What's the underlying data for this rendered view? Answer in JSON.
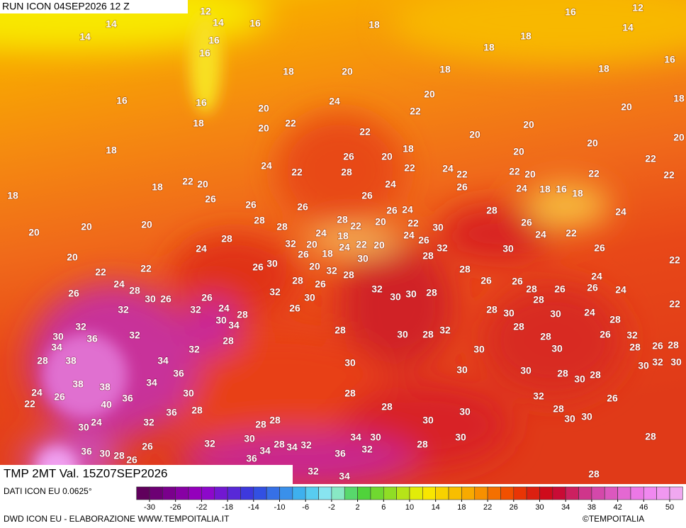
{
  "header": {
    "run": "RUN ICON 04SEP2026 12 Z"
  },
  "footer": {
    "title": "TMP 2MT Val. 15Z07SEP2026",
    "source": "DATI ICON EU 0.0625°",
    "credit": "DWD ICON EU - ELABORAZIONE WWW.TEMPOITALIA.IT",
    "brand": "©TEMPOITALIA"
  },
  "scale": {
    "ticks": [
      -30,
      -26,
      -22,
      -18,
      -14,
      -10,
      -6,
      -2,
      2,
      6,
      10,
      14,
      18,
      22,
      26,
      30,
      34,
      38,
      42,
      46,
      50
    ]
  },
  "labels": [
    12,
    12,
    14,
    14,
    16,
    16,
    14,
    14,
    16,
    18,
    18,
    16,
    16,
    18,
    18,
    20,
    18,
    18,
    16,
    16,
    20,
    18,
    20,
    24,
    22,
    20,
    18,
    20,
    22,
    22,
    20,
    20,
    20,
    18,
    26,
    20,
    18,
    20,
    20,
    22,
    24,
    22,
    28,
    22,
    24,
    22,
    22,
    20,
    22,
    22,
    18,
    22,
    20,
    24,
    26,
    24,
    18,
    16,
    18,
    18,
    26,
    26,
    26,
    26,
    26,
    24,
    24,
    28,
    28,
    28,
    22,
    20,
    22,
    28,
    26,
    20,
    20,
    20,
    28,
    24,
    18,
    22,
    20,
    24,
    26,
    30,
    24,
    22,
    24,
    32,
    20,
    24,
    32,
    30,
    26,
    20,
    26,
    30,
    26,
    18,
    30,
    28,
    22,
    22,
    22,
    20,
    32,
    28,
    28,
    24,
    26,
    24,
    28,
    30,
    26,
    26,
    32,
    28,
    26,
    32,
    30,
    30,
    28,
    26,
    26,
    28,
    26,
    26,
    24,
    32,
    32,
    24,
    28,
    26,
    30,
    28,
    30,
    28,
    30,
    24,
    22,
    32,
    32,
    30,
    34,
    28,
    30,
    28,
    32,
    28,
    28,
    28,
    30,
    36,
    34,
    28,
    26,
    32,
    32,
    30,
    30,
    28,
    26,
    28,
    28,
    38,
    34,
    30,
    30,
    30,
    30,
    32,
    30,
    36,
    28,
    30,
    28,
    38,
    38,
    34,
    24,
    26,
    36,
    30,
    28,
    32,
    26,
    22,
    40,
    36,
    28,
    28,
    30,
    28,
    30,
    24,
    30,
    32,
    28,
    28,
    30,
    30,
    30,
    28,
    32,
    30,
    26,
    36,
    30,
    28,
    26,
    34,
    28,
    34,
    32,
    34,
    30,
    32,
    36,
    36,
    28,
    32,
    34,
    28
  ]
}
